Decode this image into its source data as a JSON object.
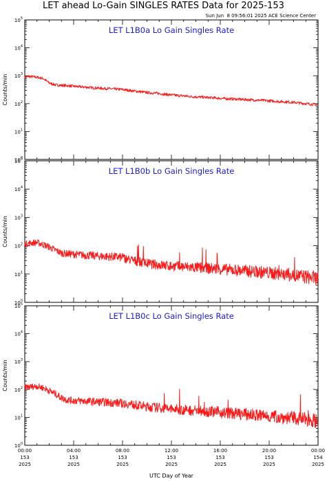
{
  "page": {
    "title": "LET ahead Lo-Gain SINGLES RATES Data for 2025-153",
    "timestamp": "Sun Jun  8 09:56:01 2025 ACE Science Center"
  },
  "chart_data": [
    {
      "type": "line",
      "title": "LET L1B0a Lo Gain Singles Rate",
      "ylabel": "Counts/min",
      "xlabel": "",
      "yscale": "log",
      "ylim": [
        1,
        100000
      ],
      "xlim": [
        0,
        24
      ],
      "x_unit": "hours UTC, day 2025-153",
      "grid": false,
      "series": [
        {
          "color": "#ff1a1a",
          "x": [
            0,
            0.5,
            1,
            1.5,
            2,
            2.5,
            3,
            3.5,
            4,
            4.5,
            5,
            5.5,
            6,
            6.5,
            7,
            7.5,
            8,
            8.5,
            9,
            9.5,
            10,
            10.5,
            11,
            11.5,
            12,
            12.5,
            13,
            13.5,
            14,
            14.5,
            15,
            15.5,
            16,
            16.5,
            17,
            17.5,
            18,
            18.5,
            19,
            19.5,
            20,
            20.5,
            21,
            21.5,
            22,
            22.5,
            23,
            23.5,
            24
          ],
          "y": [
            900,
            930,
            880,
            800,
            550,
            470,
            450,
            440,
            420,
            400,
            390,
            370,
            360,
            350,
            340,
            330,
            320,
            300,
            280,
            265,
            250,
            240,
            230,
            215,
            205,
            195,
            190,
            180,
            175,
            170,
            165,
            160,
            155,
            150,
            147,
            143,
            140,
            137,
            133,
            130,
            126,
            122,
            118,
            115,
            110,
            105,
            100,
            95,
            90
          ]
        }
      ]
    },
    {
      "type": "line",
      "title": "LET L1B0b Lo Gain Singles Rate",
      "ylabel": "Counts/min",
      "xlabel": "",
      "yscale": "log",
      "ylim": [
        1,
        100000
      ],
      "xlim": [
        0,
        24
      ],
      "x_unit": "hours UTC, day 2025-153",
      "grid": false,
      "series": [
        {
          "color": "#ff1a1a",
          "x": [
            0,
            0.5,
            1,
            1.5,
            2,
            2.5,
            3,
            3.5,
            4,
            4.5,
            5,
            5.5,
            6,
            6.5,
            7,
            7.5,
            8,
            8.5,
            9,
            9.5,
            10,
            10.5,
            11,
            11.5,
            12,
            12.5,
            13,
            13.5,
            14,
            14.5,
            15,
            15.5,
            16,
            16.5,
            17,
            17.5,
            18,
            18.5,
            19,
            19.5,
            20,
            20.5,
            21,
            21.5,
            22,
            22.5,
            23,
            23.5,
            24
          ],
          "y": [
            115,
            125,
            130,
            110,
            90,
            70,
            55,
            52,
            50,
            48,
            46,
            45,
            43,
            42,
            41,
            40,
            38,
            33,
            29,
            26,
            24,
            22,
            21,
            20,
            19,
            18.5,
            18,
            17.5,
            17,
            16.5,
            16,
            15.5,
            15,
            14.5,
            14,
            13.5,
            13,
            12.5,
            12,
            11.5,
            11,
            10.5,
            10,
            9.5,
            9,
            8.5,
            8,
            7.5,
            7
          ]
        }
      ]
    },
    {
      "type": "line",
      "title": "LET L1B0c Lo Gain Singles Rate",
      "ylabel": "Counts/min",
      "xlabel": "UTC Day of Year",
      "yscale": "log",
      "ylim": [
        1,
        100000
      ],
      "xlim": [
        0,
        24
      ],
      "x_unit": "hours UTC, day 2025-153",
      "grid": false,
      "xticks": [
        {
          "x": 0,
          "time": "00:00",
          "day": "153",
          "year": "2025"
        },
        {
          "x": 4,
          "time": "04:00",
          "day": "153",
          "year": "2025"
        },
        {
          "x": 8,
          "time": "08:00",
          "day": "153",
          "year": "2025"
        },
        {
          "x": 12,
          "time": "12:00",
          "day": "153",
          "year": "2025"
        },
        {
          "x": 16,
          "time": "16:00",
          "day": "153",
          "year": "2025"
        },
        {
          "x": 20,
          "time": "20:00",
          "day": "153",
          "year": "2025"
        },
        {
          "x": 24,
          "time": "00:00",
          "day": "154",
          "year": "2025"
        }
      ],
      "series": [
        {
          "color": "#ff1a1a",
          "x": [
            0,
            0.5,
            1,
            1.5,
            2,
            2.5,
            3,
            3.5,
            4,
            4.5,
            5,
            5.5,
            6,
            6.5,
            7,
            7.5,
            8,
            8.5,
            9,
            9.5,
            10,
            10.5,
            11,
            11.5,
            12,
            12.5,
            13,
            13.5,
            14,
            14.5,
            15,
            15.5,
            16,
            16.5,
            17,
            17.5,
            18,
            18.5,
            19,
            19.5,
            20,
            20.5,
            21,
            21.5,
            22,
            22.5,
            23,
            23.5,
            24
          ],
          "y": [
            120,
            125,
            130,
            115,
            90,
            70,
            50,
            42,
            40,
            39,
            38,
            37,
            36,
            35,
            34,
            33,
            32,
            30,
            28,
            26,
            24,
            23,
            22,
            21,
            20,
            19,
            18.5,
            18,
            17.5,
            17,
            16.5,
            16,
            15,
            14.5,
            14,
            13.5,
            13,
            12.5,
            12,
            11.5,
            11,
            10.5,
            10,
            9.8,
            9.5,
            9,
            8.5,
            8,
            7.5
          ]
        }
      ]
    }
  ]
}
